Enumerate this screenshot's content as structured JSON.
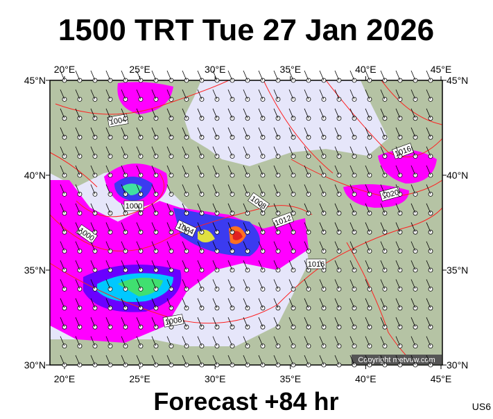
{
  "title": "1500 TRT Tue 27 Jan 2026",
  "map": {
    "lon_labels": [
      "20°E",
      "25°E",
      "30°E",
      "35°E",
      "40°E",
      "45°E"
    ],
    "lat_labels": [
      "45°N",
      "40°N",
      "35°N",
      "30°N"
    ],
    "isobar_labels": [
      "1004",
      "1000",
      "1000",
      "1004",
      "1008",
      "1012",
      "1016",
      "1016",
      "1020",
      "1008"
    ],
    "copyright": "Copyright metvuw.com"
  },
  "forecast": "Forecast +84 hr",
  "code": "US6"
}
